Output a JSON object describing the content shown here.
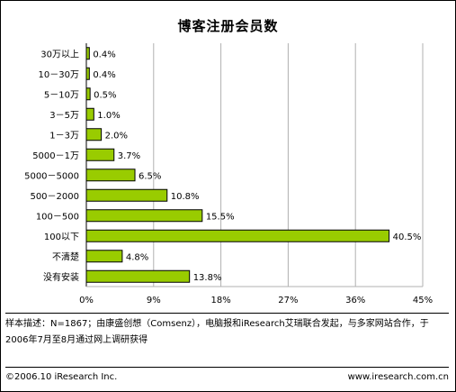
{
  "chart_data": {
    "type": "bar",
    "orientation": "horizontal",
    "title": "博客注册会员数",
    "categories": [
      "30万以上",
      "10－30万",
      "5－10万",
      "3－5万",
      "1－3万",
      "5000－1万",
      "5000－5000",
      "500－2000",
      "100－500",
      "100以下",
      "不清楚",
      "没有安装"
    ],
    "values": [
      0.4,
      0.4,
      0.5,
      1.0,
      2.0,
      3.7,
      6.5,
      10.8,
      15.5,
      40.5,
      4.8,
      13.8
    ],
    "value_labels": [
      "0.4%",
      "0.4%",
      "0.5%",
      "1.0%",
      "2.0%",
      "3.7%",
      "6.5%",
      "10.8%",
      "15.5%",
      "40.5%",
      "4.8%",
      "13.8%"
    ],
    "xlim": [
      0,
      45
    ],
    "xticks": [
      0,
      9,
      18,
      27,
      36,
      45
    ],
    "xtick_labels": [
      "0%",
      "9%",
      "18%",
      "27%",
      "36%",
      "45%"
    ],
    "grid": true,
    "bar_color": "#99cc00"
  },
  "footer": {
    "note": "样本描述：N=1867；由康盛创想（Comsenz），电脑报和iResearch艾瑞联合发起，与多家网站合作，于2006年7月至8月通过网上调研获得",
    "copyright": "©2006.10 iResearch Inc.",
    "website": "www.iresearch.com.cn"
  }
}
